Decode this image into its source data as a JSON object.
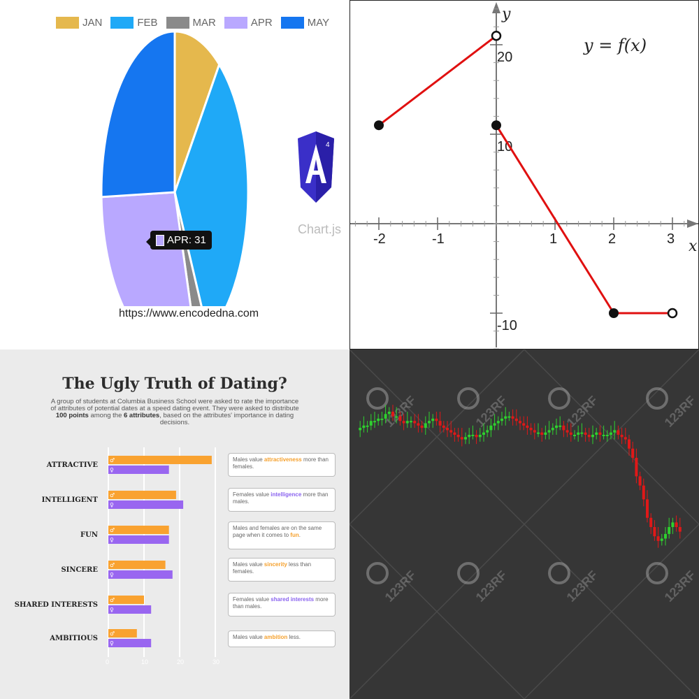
{
  "chart_data": [
    {
      "type": "pie",
      "categories": [
        "JAN",
        "FEB",
        "MAR",
        "APR",
        "MAY"
      ],
      "values": [
        11,
        34,
        3,
        31,
        27
      ],
      "colors": [
        "#e5b84d",
        "#1fa9f7",
        "#8a8a8a",
        "#b9a8ff",
        "#1576f0"
      ],
      "legend": "top",
      "tooltip": "APR: 31",
      "caption": "https://www.encodedna.com",
      "logo_text": "Chart.js",
      "logo_icon": "angular-icon",
      "logo_badge": "4"
    },
    {
      "type": "line",
      "title": "y = f(x)",
      "xlabel": "x",
      "ylabel": "y",
      "xlim": [
        -2.4,
        3.4
      ],
      "ylim": [
        -12.5,
        23
      ],
      "xticks": [
        -2,
        -1,
        1,
        2,
        3
      ],
      "yticks": [
        20,
        10,
        -10
      ],
      "tick_labels_x": [
        "-2",
        "-1",
        "1",
        "2",
        "3"
      ],
      "tick_labels_y": [
        "20",
        "10",
        "-10"
      ],
      "segments": [
        {
          "x": [
            -2,
            0
          ],
          "y": [
            11,
            21
          ]
        },
        {
          "x": [
            0,
            2
          ],
          "y": [
            11,
            -10
          ]
        },
        {
          "x": [
            2,
            3
          ],
          "y": [
            -10,
            -10
          ]
        }
      ],
      "closed_points": [
        [
          -2,
          11
        ],
        [
          0,
          11
        ],
        [
          2,
          -10
        ]
      ],
      "open_points": [
        [
          0,
          21
        ],
        [
          3,
          -10
        ]
      ],
      "line_color": "#e01010"
    },
    {
      "type": "bar",
      "title": "The Ugly Truth of Dating?",
      "description_parts": [
        "A group of students at Columbia Business School were asked to rate the importance of attributes of potential dates at a speed dating event. They were asked to distribute ",
        "100 points",
        " among the ",
        "6 attributes",
        ", based on the attributes' importance in dating decisions."
      ],
      "categories": [
        "ATTRACTIVE",
        "INTELLIGENT",
        "FUN",
        "SINCERE",
        "SHARED INTERESTS",
        "AMBITIOUS"
      ],
      "series": [
        {
          "name": "♂",
          "values": [
            29,
            19,
            17,
            16,
            10,
            8
          ],
          "color": "#f9a230"
        },
        {
          "name": "♀",
          "values": [
            17,
            21,
            17,
            18,
            12,
            12
          ],
          "color": "#9966f0"
        }
      ],
      "xticks": [
        0,
        10,
        20,
        30
      ],
      "xlim": [
        0,
        30
      ],
      "notes": [
        [
          "Males value ",
          "attractiveness",
          " more than females."
        ],
        [
          "Females value ",
          "intelligence",
          " more than males."
        ],
        [
          "Males and females are on the same page when it comes to ",
          "fun",
          "."
        ],
        [
          "Males value ",
          "sincerity",
          " less than females."
        ],
        [
          "Females value ",
          "shared interests",
          " more than males."
        ],
        [
          "Males value ",
          "ambition",
          " less."
        ]
      ],
      "note_highlight": [
        "o",
        "p",
        "o",
        "o",
        "p",
        "o"
      ]
    },
    {
      "type": "candlestick",
      "watermark": "123RF",
      "up_color": "#2ed12e",
      "down_color": "#e01818",
      "values": [
        62,
        63,
        64,
        64,
        66,
        66,
        67,
        67,
        69,
        70,
        68,
        68,
        66,
        65,
        66,
        66,
        65,
        64,
        63,
        65,
        66,
        67,
        66,
        64,
        63,
        62,
        61,
        60,
        59,
        58,
        59,
        60,
        60,
        59,
        60,
        61,
        62,
        64,
        65,
        66,
        67,
        68,
        68,
        67,
        66,
        65,
        64,
        63,
        62,
        61,
        61,
        60,
        61,
        62,
        63,
        64,
        64,
        62,
        61,
        60,
        60,
        61,
        61,
        60,
        59,
        60,
        61,
        60,
        60,
        60,
        61,
        62,
        60,
        59,
        58,
        54,
        50,
        42,
        38,
        32,
        24,
        20,
        16,
        14,
        15,
        17,
        20,
        22,
        20,
        18
      ]
    }
  ]
}
